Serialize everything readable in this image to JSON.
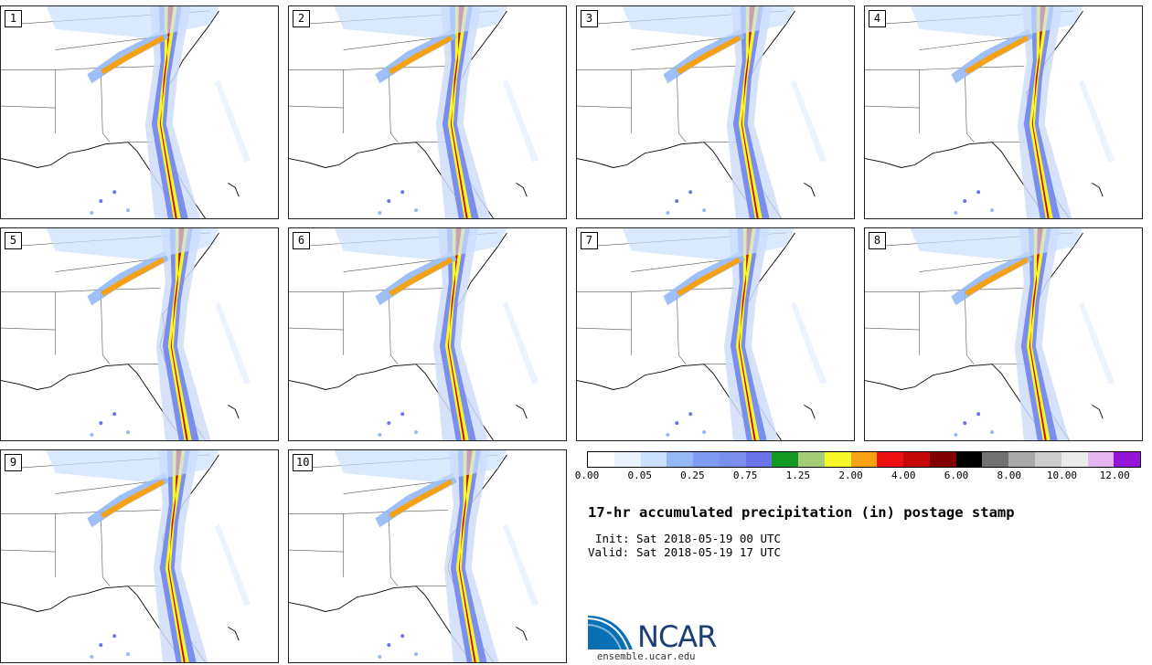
{
  "panels": [
    {
      "label": "1"
    },
    {
      "label": "2"
    },
    {
      "label": "3"
    },
    {
      "label": "4"
    },
    {
      "label": "5"
    },
    {
      "label": "6"
    },
    {
      "label": "7"
    },
    {
      "label": "8"
    },
    {
      "label": "9"
    },
    {
      "label": "10"
    }
  ],
  "colorbar": {
    "colors": [
      "#ffffff",
      "#eaf3ff",
      "#cce0ff",
      "#93b9f5",
      "#7d9cf2",
      "#7a8ef0",
      "#6a73e8",
      "#119922",
      "#a6cc77",
      "#f7f72a",
      "#f7a215",
      "#ee1111",
      "#c30909",
      "#800000",
      "#000000",
      "#727272",
      "#a9a9a9",
      "#cdcdcd",
      "#ebebeb",
      "#e5b6f2",
      "#9415d8"
    ],
    "tick_labels": [
      "0.00",
      "0.05",
      "0.25",
      "0.75",
      "1.25",
      "2.00",
      "4.00",
      "6.00",
      "8.00",
      "10.00",
      "12.00"
    ]
  },
  "title": "17-hr accumulated precipitation (in) postage stamp",
  "init_label": "Init:",
  "init_value": "Sat 2018-05-19 00 UTC",
  "valid_label": "Valid:",
  "valid_value": "Sat 2018-05-19 17 UTC",
  "logo_text": "NCAR",
  "website": "ensemble.ucar.edu"
}
